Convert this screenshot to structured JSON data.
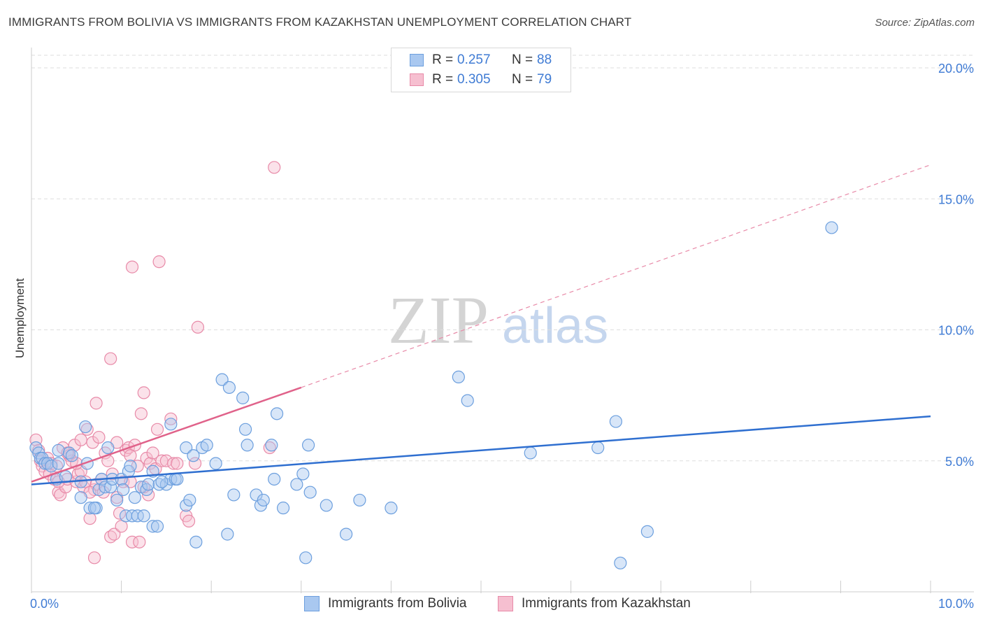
{
  "title": "IMMIGRANTS FROM BOLIVIA VS IMMIGRANTS FROM KAZAKHSTAN UNEMPLOYMENT CORRELATION CHART",
  "source": "Source: ZipAtlas.com",
  "watermark": {
    "zip": "ZIP",
    "atlas": "atlas"
  },
  "colors": {
    "bolivia_fill": "#a9c8f0",
    "bolivia_stroke": "#6c9fde",
    "bolivia_line": "#2f6fd0",
    "kazakh_fill": "#f6bfd0",
    "kazakh_stroke": "#e88aa8",
    "kazakh_line": "#e0628a",
    "axis_text": "#3f7bd4",
    "grid": "#dddddd"
  },
  "legend": {
    "r_label": "R =",
    "n_label": "N =",
    "entries": [
      {
        "r": "0.257",
        "n": "88"
      },
      {
        "r": "0.305",
        "n": "79"
      }
    ]
  },
  "chart_data": {
    "type": "scatter",
    "title": "IMMIGRANTS FROM BOLIVIA VS IMMIGRANTS FROM KAZAKHSTAN UNEMPLOYMENT CORRELATION CHART",
    "xlabel": "",
    "ylabel": "Unemployment",
    "xlim": [
      0,
      10
    ],
    "ylim": [
      0,
      20
    ],
    "x_tick_labels": [
      "0.0%",
      "10.0%"
    ],
    "y_ticks": [
      5,
      10,
      15,
      20
    ],
    "y_tick_labels": [
      "5.0%",
      "10.0%",
      "15.0%",
      "20.0%"
    ],
    "grid": true,
    "legend_position": "top-center",
    "series": [
      {
        "name": "Immigrants from Bolivia",
        "r": 0.257,
        "n": 88,
        "trend": {
          "x0": 0,
          "y0": 4.1,
          "x1": 10,
          "y1": 6.7
        },
        "points": [
          [
            0.05,
            5.5
          ],
          [
            0.08,
            5.3
          ],
          [
            0.1,
            5.1
          ],
          [
            0.12,
            5.1
          ],
          [
            0.15,
            4.9
          ],
          [
            0.18,
            4.9
          ],
          [
            0.22,
            4.8
          ],
          [
            0.28,
            4.3
          ],
          [
            0.3,
            5.4
          ],
          [
            0.38,
            4.4
          ],
          [
            0.42,
            5.3
          ],
          [
            0.55,
            4.2
          ],
          [
            0.62,
            4.9
          ],
          [
            0.6,
            6.3
          ],
          [
            0.55,
            3.6
          ],
          [
            0.65,
            3.2
          ],
          [
            0.72,
            3.2
          ],
          [
            0.75,
            3.9
          ],
          [
            0.78,
            4.3
          ],
          [
            0.82,
            4.0
          ],
          [
            0.88,
            4.0
          ],
          [
            0.9,
            4.3
          ],
          [
            0.95,
            3.5
          ],
          [
            1.0,
            4.3
          ],
          [
            1.02,
            3.9
          ],
          [
            1.08,
            4.6
          ],
          [
            1.1,
            4.8
          ],
          [
            1.05,
            2.9
          ],
          [
            1.12,
            2.9
          ],
          [
            1.18,
            2.9
          ],
          [
            1.25,
            2.9
          ],
          [
            1.22,
            4.0
          ],
          [
            1.28,
            3.9
          ],
          [
            1.3,
            4.1
          ],
          [
            1.35,
            4.6
          ],
          [
            1.35,
            2.5
          ],
          [
            1.4,
            2.5
          ],
          [
            1.42,
            4.1
          ],
          [
            1.5,
            4.1
          ],
          [
            1.55,
            4.3
          ],
          [
            1.6,
            4.3
          ],
          [
            1.55,
            6.4
          ],
          [
            1.62,
            4.3
          ],
          [
            1.72,
            3.3
          ],
          [
            1.76,
            3.5
          ],
          [
            1.72,
            5.5
          ],
          [
            1.8,
            5.2
          ],
          [
            1.83,
            1.9
          ],
          [
            1.9,
            5.5
          ],
          [
            1.95,
            5.6
          ],
          [
            2.05,
            4.9
          ],
          [
            2.12,
            8.1
          ],
          [
            2.18,
            2.2
          ],
          [
            2.2,
            7.8
          ],
          [
            2.25,
            3.7
          ],
          [
            2.35,
            7.4
          ],
          [
            2.38,
            6.2
          ],
          [
            2.4,
            5.6
          ],
          [
            2.5,
            3.7
          ],
          [
            2.55,
            3.3
          ],
          [
            2.58,
            3.5
          ],
          [
            2.67,
            5.6
          ],
          [
            2.7,
            4.3
          ],
          [
            2.73,
            6.8
          ],
          [
            2.8,
            3.2
          ],
          [
            2.95,
            4.1
          ],
          [
            3.02,
            4.5
          ],
          [
            3.05,
            1.3
          ],
          [
            3.08,
            5.6
          ],
          [
            3.1,
            3.8
          ],
          [
            3.28,
            3.3
          ],
          [
            3.5,
            2.2
          ],
          [
            3.65,
            3.5
          ],
          [
            4.0,
            3.2
          ],
          [
            4.75,
            8.2
          ],
          [
            4.85,
            7.3
          ],
          [
            5.55,
            5.3
          ],
          [
            6.3,
            5.5
          ],
          [
            6.5,
            6.5
          ],
          [
            6.55,
            1.1
          ],
          [
            6.85,
            2.3
          ],
          [
            8.9,
            13.9
          ],
          [
            0.3,
            4.9
          ],
          [
            0.45,
            5.2
          ],
          [
            0.85,
            5.5
          ],
          [
            1.15,
            3.6
          ],
          [
            0.7,
            3.2
          ],
          [
            1.45,
            4.2
          ]
        ]
      },
      {
        "name": "Immigrants from Kazakhstan",
        "r": 0.305,
        "n": 79,
        "trend": {
          "x0": 0,
          "y0": 4.2,
          "x1": 3.0,
          "y1": 7.8
        },
        "trend_extension": {
          "x0": 3.0,
          "y0": 7.8,
          "x1": 10,
          "y1": 16.3
        },
        "points": [
          [
            0.05,
            5.8
          ],
          [
            0.08,
            5.4
          ],
          [
            0.1,
            5.0
          ],
          [
            0.12,
            4.8
          ],
          [
            0.15,
            4.6
          ],
          [
            0.18,
            5.1
          ],
          [
            0.2,
            4.5
          ],
          [
            0.22,
            4.9
          ],
          [
            0.25,
            4.3
          ],
          [
            0.28,
            4.8
          ],
          [
            0.3,
            3.8
          ],
          [
            0.32,
            3.7
          ],
          [
            0.35,
            5.5
          ],
          [
            0.38,
            4.0
          ],
          [
            0.4,
            4.3
          ],
          [
            0.42,
            5.2
          ],
          [
            0.45,
            5.0
          ],
          [
            0.48,
            5.6
          ],
          [
            0.5,
            4.2
          ],
          [
            0.52,
            4.5
          ],
          [
            0.55,
            4.6
          ],
          [
            0.58,
            4.0
          ],
          [
            0.6,
            4.2
          ],
          [
            0.62,
            6.2
          ],
          [
            0.65,
            2.8
          ],
          [
            0.68,
            5.7
          ],
          [
            0.7,
            3.9
          ],
          [
            0.72,
            4.1
          ],
          [
            0.75,
            5.9
          ],
          [
            0.78,
            4.3
          ],
          [
            0.8,
            3.8
          ],
          [
            0.82,
            5.3
          ],
          [
            0.85,
            5.0
          ],
          [
            0.88,
            2.1
          ],
          [
            0.9,
            4.5
          ],
          [
            0.92,
            2.2
          ],
          [
            0.95,
            5.7
          ],
          [
            0.98,
            3.0
          ],
          [
            1.0,
            2.5
          ],
          [
            1.02,
            4.2
          ],
          [
            1.05,
            5.4
          ],
          [
            1.08,
            5.5
          ],
          [
            1.1,
            4.2
          ],
          [
            1.12,
            1.9
          ],
          [
            1.15,
            5.6
          ],
          [
            1.18,
            4.8
          ],
          [
            1.2,
            1.9
          ],
          [
            1.22,
            6.8
          ],
          [
            1.25,
            7.6
          ],
          [
            1.28,
            5.1
          ],
          [
            1.3,
            3.7
          ],
          [
            1.32,
            4.9
          ],
          [
            1.35,
            5.3
          ],
          [
            1.38,
            4.7
          ],
          [
            1.4,
            6.2
          ],
          [
            1.45,
            5.0
          ],
          [
            1.5,
            5.0
          ],
          [
            1.55,
            6.6
          ],
          [
            1.58,
            4.9
          ],
          [
            1.62,
            4.9
          ],
          [
            1.72,
            2.9
          ],
          [
            1.75,
            2.7
          ],
          [
            1.82,
            4.9
          ],
          [
            2.65,
            5.5
          ],
          [
            0.72,
            7.2
          ],
          [
            0.88,
            8.9
          ],
          [
            1.12,
            12.4
          ],
          [
            1.42,
            12.6
          ],
          [
            1.85,
            10.1
          ],
          [
            2.7,
            16.2
          ],
          [
            0.7,
            1.3
          ],
          [
            0.4,
            5.3
          ],
          [
            0.55,
            5.8
          ],
          [
            0.65,
            3.8
          ],
          [
            0.95,
            3.6
          ],
          [
            1.1,
            5.2
          ],
          [
            0.3,
            4.2
          ],
          [
            1.25,
            4.0
          ],
          [
            0.5,
            4.9
          ]
        ]
      }
    ]
  },
  "bottom_legend": [
    {
      "label": "Immigrants from Bolivia"
    },
    {
      "label": "Immigrants from Kazakhstan"
    }
  ]
}
